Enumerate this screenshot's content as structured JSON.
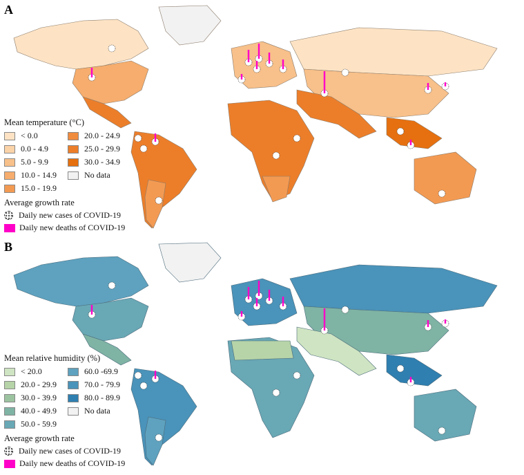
{
  "panels": [
    {
      "letter": "A",
      "legend_title": "Mean temperature (°C)",
      "classes": [
        {
          "label": "< 0.0",
          "color": "#fde3c4"
        },
        {
          "label": "0.0 - 4.9",
          "color": "#fbd3a8"
        },
        {
          "label": "5.0 - 9.9",
          "color": "#f8c08a"
        },
        {
          "label": "10.0 - 14.9",
          "color": "#f6ad6d"
        },
        {
          "label": "15.0 - 19.9",
          "color": "#f39a52"
        },
        {
          "label": "20.0 - 24.9",
          "color": "#f08c3e"
        },
        {
          "label": "25.0 - 29.9",
          "color": "#ec7e2a"
        },
        {
          "label": "30.0 - 34.9",
          "color": "#e6700f"
        },
        {
          "label": "No data",
          "color": "#f2f2f2"
        }
      ],
      "growth_title": "Average growth rate",
      "cases_label": "Daily new cases of  COVID-19",
      "deaths_label": "Daily new deaths of COVID-19"
    },
    {
      "letter": "B",
      "legend_title": "Mean relative humidity (%)",
      "classes": [
        {
          "label": "< 20.0",
          "color": "#cfe4c2"
        },
        {
          "label": "20.0 - 29.9",
          "color": "#b6d4a8"
        },
        {
          "label": "30.0 - 39.9",
          "color": "#9cc3a0"
        },
        {
          "label": "40.0 - 49.9",
          "color": "#7fb3a4"
        },
        {
          "label": "50.0 - 59.9",
          "color": "#69a8b5"
        },
        {
          "label": "60.0 -69.9",
          "color": "#5ea2bf"
        },
        {
          "label": "70.0 - 79.9",
          "color": "#4a93ba"
        },
        {
          "label": "80.0 - 89.9",
          "color": "#2f7fb0"
        },
        {
          "label": "No data",
          "color": "#f2f2f2"
        }
      ],
      "growth_title": "Average growth rate",
      "cases_label": "Daily new cases of  COVID-19",
      "deaths_label": "Daily new deaths of COVID-19"
    }
  ],
  "colors": {
    "death_bar": "#ff00c8",
    "border": "#7a6a5a",
    "no_data": "#f2f2f2"
  }
}
